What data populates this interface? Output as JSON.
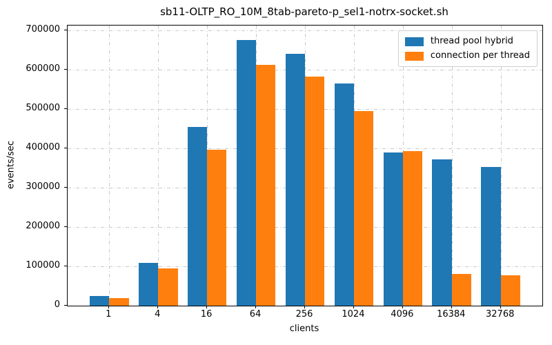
{
  "window": {
    "background": "#ffffff"
  },
  "chart_data": {
    "type": "bar",
    "title": "sb11-OLTP_RO_10M_8tab-pareto-p_sel1-notrx-socket.sh",
    "xlabel": "clients",
    "ylabel": "events/sec",
    "categories": [
      "1",
      "4",
      "16",
      "64",
      "256",
      "1024",
      "4096",
      "16384",
      "32768"
    ],
    "series": [
      {
        "name": "thread pool hybrid",
        "color": "#1f77b4",
        "values": [
          25000,
          108000,
          455000,
          675000,
          641000,
          564000,
          389000,
          371000,
          352000
        ]
      },
      {
        "name": "connection per thread",
        "color": "#ff7f0e",
        "values": [
          20000,
          94000,
          396000,
          613000,
          583000,
          494000,
          393000,
          80000,
          77000
        ]
      }
    ],
    "yticks": [
      0,
      100000,
      200000,
      300000,
      400000,
      500000,
      600000,
      700000
    ],
    "ylim": [
      0,
      712000
    ],
    "grid": true,
    "grid_style": "dash-dot",
    "grid_color": "#c9c9c9",
    "legend_position": "upper right",
    "bar_width_units": 0.4,
    "x_margin_units": 0.85
  }
}
